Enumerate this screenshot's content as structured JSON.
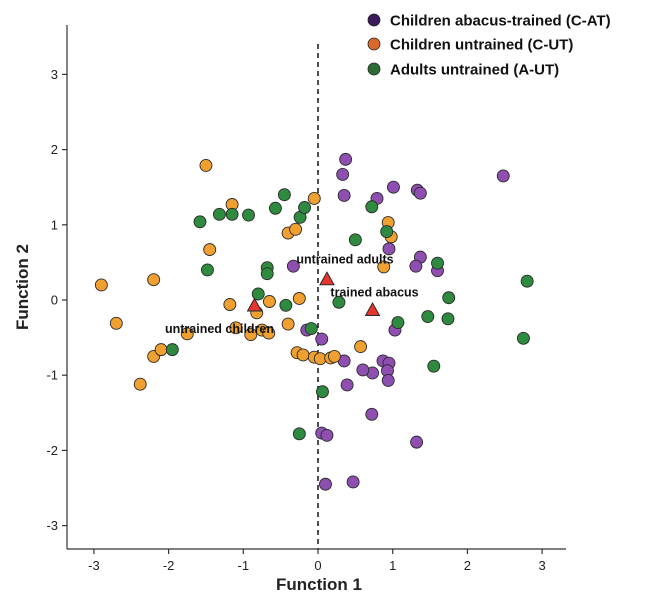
{
  "chart_data": {
    "type": "scatter",
    "xlabel": "Function 1",
    "ylabel": "Function 2",
    "xlim": [
      -3.3,
      3.3
    ],
    "ylim": [
      -3.3,
      3.3
    ],
    "xticks": [
      -3,
      -2,
      -1,
      0,
      1,
      2,
      3
    ],
    "yticks": [
      -3,
      -2,
      -1,
      0,
      1,
      2,
      3
    ],
    "grid": false,
    "legend_position": "top-right",
    "reference_line": {
      "x": 0,
      "style": "dashed"
    },
    "series": [
      {
        "name": "Children abacus-trained (C-AT)",
        "color": "#8e4fb0",
        "legend_color": "#3a1a5e",
        "points": [
          [
            0.37,
            1.87
          ],
          [
            0.33,
            1.67
          ],
          [
            0.35,
            1.39
          ],
          [
            0.79,
            1.35
          ],
          [
            1.01,
            1.5
          ],
          [
            1.33,
            1.46
          ],
          [
            1.37,
            1.42
          ],
          [
            2.48,
            1.65
          ],
          [
            0.95,
            0.68
          ],
          [
            1.37,
            0.57
          ],
          [
            1.31,
            0.45
          ],
          [
            1.6,
            0.39
          ],
          [
            -0.33,
            0.45
          ],
          [
            1.03,
            -0.4
          ],
          [
            0.05,
            -0.52
          ],
          [
            -0.15,
            -0.4
          ],
          [
            0.35,
            -0.81
          ],
          [
            0.87,
            -0.81
          ],
          [
            0.95,
            -0.84
          ],
          [
            0.93,
            -0.94
          ],
          [
            0.73,
            -0.97
          ],
          [
            0.94,
            -1.07
          ],
          [
            0.6,
            -0.93
          ],
          [
            0.39,
            -1.13
          ],
          [
            0.72,
            -1.52
          ],
          [
            0.05,
            -1.77
          ],
          [
            0.12,
            -1.8
          ],
          [
            1.32,
            -1.89
          ],
          [
            0.1,
            -2.45
          ],
          [
            0.47,
            -2.42
          ]
        ]
      },
      {
        "name": "Children untrained (C-UT)",
        "color": "#f0a030",
        "legend_color": "#d8692a",
        "points": [
          [
            -2.9,
            0.2
          ],
          [
            -2.7,
            -0.31
          ],
          [
            -2.2,
            0.27
          ],
          [
            -2.2,
            -0.75
          ],
          [
            -2.1,
            -0.66
          ],
          [
            -2.38,
            -1.12
          ],
          [
            -1.75,
            -0.45
          ],
          [
            -1.5,
            1.79
          ],
          [
            -1.45,
            0.67
          ],
          [
            -1.15,
            1.27
          ],
          [
            -1.18,
            -0.06
          ],
          [
            -1.1,
            -0.37
          ],
          [
            -0.9,
            -0.46
          ],
          [
            -0.75,
            -0.4
          ],
          [
            -0.66,
            -0.44
          ],
          [
            -0.82,
            -0.17
          ],
          [
            -0.65,
            -0.02
          ],
          [
            -0.4,
            0.89
          ],
          [
            -0.3,
            0.94
          ],
          [
            -0.05,
            1.35
          ],
          [
            -0.25,
            0.02
          ],
          [
            -0.4,
            -0.32
          ],
          [
            -0.28,
            -0.7
          ],
          [
            -0.2,
            -0.73
          ],
          [
            -0.05,
            -0.76
          ],
          [
            0.03,
            -0.78
          ],
          [
            0.17,
            -0.77
          ],
          [
            0.22,
            -0.75
          ],
          [
            0.57,
            -0.62
          ],
          [
            0.94,
            1.03
          ],
          [
            0.98,
            0.84
          ],
          [
            0.88,
            0.44
          ]
        ]
      },
      {
        "name": "Adults untrained (A-UT)",
        "color": "#2e8a3e",
        "legend_color": "#2e6a34",
        "points": [
          [
            -1.58,
            1.04
          ],
          [
            -1.32,
            1.14
          ],
          [
            -1.15,
            1.14
          ],
          [
            -0.93,
            1.13
          ],
          [
            -0.57,
            1.22
          ],
          [
            -0.45,
            1.4
          ],
          [
            -0.24,
            1.1
          ],
          [
            -0.18,
            1.23
          ],
          [
            -1.48,
            0.4
          ],
          [
            -0.68,
            0.43
          ],
          [
            -0.68,
            0.35
          ],
          [
            -0.8,
            0.08
          ],
          [
            -0.43,
            -0.07
          ],
          [
            -0.09,
            -0.38
          ],
          [
            0.28,
            -0.03
          ],
          [
            0.72,
            1.24
          ],
          [
            0.5,
            0.8
          ],
          [
            0.92,
            0.91
          ],
          [
            1.6,
            0.49
          ],
          [
            1.75,
            0.03
          ],
          [
            1.47,
            -0.22
          ],
          [
            1.74,
            -0.25
          ],
          [
            1.07,
            -0.3
          ],
          [
            2.8,
            0.25
          ],
          [
            2.75,
            -0.51
          ],
          [
            -1.95,
            -0.66
          ],
          [
            0.06,
            -1.22
          ],
          [
            1.55,
            -0.88
          ],
          [
            -0.25,
            -1.78
          ]
        ]
      }
    ],
    "centroids": [
      {
        "label": "untrained adults",
        "x": 0.12,
        "y": 0.27,
        "color": "#e8342e"
      },
      {
        "label": "trained abacus",
        "x": 0.73,
        "y": -0.14,
        "color": "#e8342e"
      },
      {
        "label": "untrained children",
        "x": -0.85,
        "y": -0.08,
        "color": "#e8342e"
      }
    ]
  }
}
